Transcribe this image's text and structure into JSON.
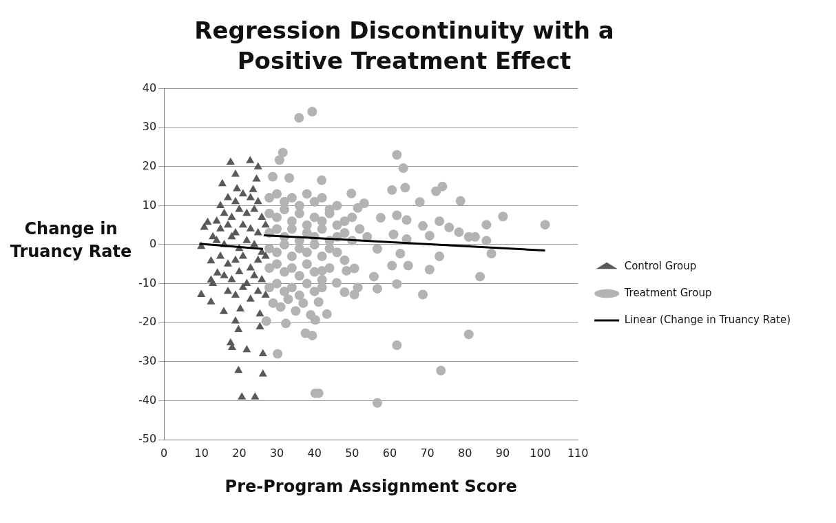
{
  "chart_data": {
    "type": "scatter",
    "title": "Regression Discontinuity with a Positive Treatment Effect",
    "xlabel": "Pre-Program Assignment Score",
    "ylabel": "Change in Truancy Rate",
    "xlim": [
      0,
      110
    ],
    "ylim": [
      -50,
      40
    ],
    "xticks": [
      0,
      10,
      20,
      30,
      40,
      50,
      60,
      70,
      80,
      90,
      100,
      110
    ],
    "yticks": [
      -50,
      -40,
      -30,
      -20,
      -10,
      0,
      10,
      20,
      30,
      40
    ],
    "grid": "y",
    "legend": "right",
    "series": [
      {
        "name": "Control Group",
        "color": "#595959",
        "marker": "triangle",
        "x": [
          17.7,
          22.9,
          25,
          19,
          24.6,
          15.5,
          19.4,
          23.7,
          11.6,
          10.7,
          9.9,
          12.5,
          14.2,
          12.5,
          9.9,
          12.5,
          15.9,
          20.3,
          25.5,
          19,
          19.8,
          25.5,
          17.7,
          18.1,
          22,
          26.3,
          19.8,
          26.3,
          20.7,
          24.2,
          15,
          17,
          19,
          21,
          23,
          25,
          16,
          18,
          20,
          22,
          24,
          26,
          15,
          17,
          19,
          21,
          23,
          25,
          27,
          14,
          16,
          18,
          20,
          22,
          24,
          26,
          15,
          17,
          19,
          21,
          23,
          25,
          27,
          16,
          18,
          20,
          22,
          24,
          26,
          17,
          19,
          21,
          23,
          25,
          27,
          13,
          14,
          13
        ],
        "values": [
          21.1,
          21.5,
          19.9,
          18,
          16.8,
          15.6,
          14.3,
          14.1,
          5.7,
          4.4,
          -0.5,
          -4.2,
          -7.3,
          -9.1,
          -12.8,
          -14.7,
          -17.2,
          -16.5,
          -17.8,
          -19.6,
          -21.8,
          -21.1,
          -25.2,
          -26.4,
          -27,
          -28,
          -32.3,
          -33.2,
          -39.1,
          -39.1,
          10,
          12,
          11,
          13,
          12,
          11,
          8,
          7,
          9,
          8,
          9,
          7,
          4,
          5,
          3,
          5,
          4,
          3,
          5,
          1,
          0,
          2,
          -1,
          1,
          0,
          -2,
          -3,
          -5,
          -4,
          -3,
          -6,
          -4,
          -3,
          -8,
          -9,
          -7,
          -10,
          -8,
          -9,
          -12,
          -13,
          -11,
          -14,
          -12,
          -13,
          -10,
          6,
          2
        ]
      },
      {
        "name": "Treatment Group",
        "color": "#b3b3b3",
        "marker": "circle",
        "x": [
          35.9,
          39.4,
          31.6,
          30.7,
          28.9,
          33.3,
          41.9,
          30.2,
          40.2,
          27.2,
          32.4,
          37.6,
          61.9,
          63.6,
          60.6,
          64.1,
          72.3,
          74,
          68,
          78.8,
          49.8,
          53.2,
          51.5,
          90.1,
          85.7,
          101.3,
          57.6,
          61.9,
          64.5,
          68.8,
          73.2,
          75.8,
          78.4,
          81,
          82.7,
          85.7,
          61,
          64.5,
          70.6,
          62.8,
          73.2,
          87,
          56.7,
          60.6,
          64.9,
          70.6,
          84,
          50.6,
          48.5,
          55.8,
          61.9,
          56.7,
          51.5,
          48,
          50.6,
          68.8,
          45.9,
          42,
          41.1,
          43.3,
          40.2,
          39.4,
          81,
          61.9,
          73.6,
          41.1,
          56.7,
          28,
          30,
          32,
          34,
          36,
          38,
          40,
          42,
          44,
          46,
          28,
          30,
          32,
          34,
          36,
          38,
          40,
          42,
          44,
          46,
          48,
          50,
          28,
          30,
          32,
          34,
          36,
          38,
          40,
          42,
          44,
          46,
          48,
          50,
          52,
          54,
          28,
          30,
          32,
          34,
          36,
          38,
          40,
          42,
          44,
          46,
          48,
          28,
          30,
          32,
          34,
          36,
          38,
          40,
          42,
          44,
          28,
          30,
          32,
          34,
          36,
          38,
          40,
          42,
          29,
          31,
          33,
          35,
          37,
          39
        ],
        "values": [
          32.5,
          34.1,
          23.6,
          21.7,
          17.4,
          17.1,
          16.5,
          -28,
          -38.1,
          -19.6,
          -20.2,
          -22.7,
          23,
          19.6,
          14,
          14.6,
          13.7,
          14.9,
          10.9,
          11.2,
          13.1,
          10.6,
          9.4,
          7.2,
          5.1,
          5.1,
          6.9,
          7.5,
          6.3,
          4.8,
          6,
          4.4,
          3.2,
          2,
          2,
          1,
          2.6,
          1.4,
          2.3,
          -2.3,
          -3,
          -2.3,
          -1.1,
          -5.4,
          -5.4,
          -6.4,
          -8.2,
          -6.1,
          -6.7,
          -8.2,
          -10.1,
          -11.3,
          -11,
          -12.2,
          -12.8,
          -12.8,
          -9.8,
          -6.7,
          -14.7,
          -17.8,
          -19.3,
          -23.3,
          -23,
          -25.8,
          -32.3,
          -38.1,
          -40.6,
          12,
          13,
          11,
          12,
          10,
          13,
          11,
          12,
          9,
          10,
          8,
          7,
          9,
          6,
          8,
          5,
          7,
          6,
          8,
          5,
          6,
          7,
          3,
          4,
          2,
          4,
          1,
          3,
          2,
          4,
          1,
          2,
          3,
          1,
          4,
          2,
          -1,
          -2,
          0,
          -3,
          -1,
          -2,
          0,
          -3,
          -1,
          -2,
          -4,
          -6,
          -5,
          -7,
          -6,
          -8,
          -5,
          -7,
          -9,
          -6,
          -11,
          -10,
          -12,
          -11,
          -13,
          -10,
          -12,
          -11,
          -15,
          -16,
          -14,
          -17,
          -15,
          -18
        ]
      },
      {
        "name": "Linear (Change in Truancy Rate)",
        "type": "line",
        "color": "#000000",
        "marker": "none",
        "line_style": "solid",
        "x": [
          9.4,
          26.3,
          26.4,
          26.5,
          101.3
        ],
        "values": [
          0.2,
          -1.1,
          null,
          2.4,
          -1.5
        ]
      }
    ]
  }
}
